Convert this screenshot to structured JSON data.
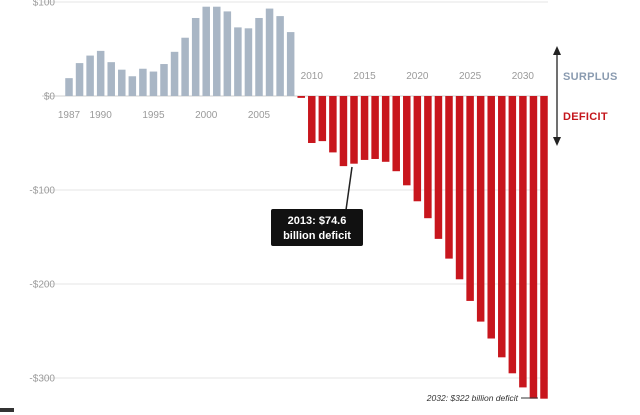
{
  "chart_data": {
    "type": "bar",
    "title": "",
    "xlabel": "",
    "ylabel": "",
    "ylim": [
      -340,
      105
    ],
    "y_ticks": [
      100,
      0,
      -100,
      -200,
      -300
    ],
    "y_tick_labels": [
      "$100",
      "$0",
      "-$100",
      "-$200",
      "-$300"
    ],
    "x_tick_labels_upper": [
      "1987",
      "1990",
      "1995",
      "2000",
      "2005"
    ],
    "x_tick_labels_lower": [
      "2010",
      "2015",
      "2020",
      "2025",
      "2030"
    ],
    "legend": {
      "surplus": "SURPLUS",
      "deficit": "DEFICIT"
    },
    "colors": {
      "surplus": "#a9b6c5",
      "deficit": "#c8161d",
      "grid": "#e6e6e6"
    },
    "grid": true,
    "series": [
      {
        "name": "surplus",
        "x": [
          1987,
          1988,
          1989,
          1990,
          1991,
          1992,
          1993,
          1994,
          1995,
          1996,
          1997,
          1998,
          1999,
          2000,
          2001,
          2002,
          2003,
          2004,
          2005,
          2006,
          2007,
          2008
        ],
        "values": [
          19,
          35,
          43,
          48,
          36,
          28,
          21,
          29,
          26,
          34,
          47,
          62,
          83,
          95,
          95,
          90,
          73,
          72,
          83,
          93,
          85,
          68
        ]
      },
      {
        "name": "deficit",
        "x": [
          2009,
          2010,
          2011,
          2012,
          2013,
          2014,
          2015,
          2016,
          2017,
          2018,
          2019,
          2020,
          2021,
          2022,
          2023,
          2024,
          2025,
          2026,
          2027,
          2028,
          2029,
          2030,
          2031,
          2032
        ],
        "values": [
          -2,
          -50,
          -48,
          -60,
          -74.6,
          -72,
          -68,
          -67,
          -70,
          -80,
          -95,
          -112,
          -130,
          -152,
          -173,
          -195,
          -218,
          -240,
          -258,
          -278,
          -295,
          -310,
          -322,
          -322
        ]
      }
    ],
    "annotations": {
      "callout_line1": "2013: $74.6",
      "callout_line2": "billion deficit",
      "end_label": "2032: $322 billion deficit"
    }
  }
}
